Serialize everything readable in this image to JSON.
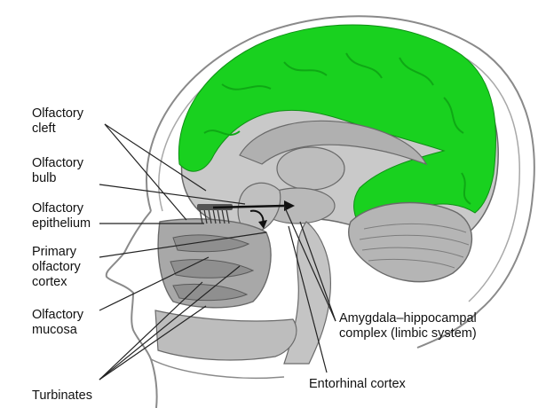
{
  "labels": {
    "olfactory_cleft": [
      "Olfactory",
      "cleft"
    ],
    "olfactory_bulb": [
      "Olfactory",
      "bulb"
    ],
    "olfactory_epithelium": [
      "Olfactory",
      "epithelium"
    ],
    "primary_olfactory_cortex": [
      "Primary",
      "olfactory",
      "cortex"
    ],
    "olfactory_mucosa": [
      "Olfactory",
      "mucosa"
    ],
    "turbinates": [
      "Turbinates"
    ],
    "amygdala_hippocampal_complex": [
      "Amygdala–hippocampal",
      "complex (limbic system)"
    ],
    "entorhinal_cortex": [
      "Entorhinal cortex"
    ]
  },
  "colors": {
    "highlight": "#19d11f",
    "tissue": "#c9c9c9",
    "tissue_dark": "#9a9a9a",
    "outline": "#6a6a6a",
    "leader": "#222222"
  }
}
